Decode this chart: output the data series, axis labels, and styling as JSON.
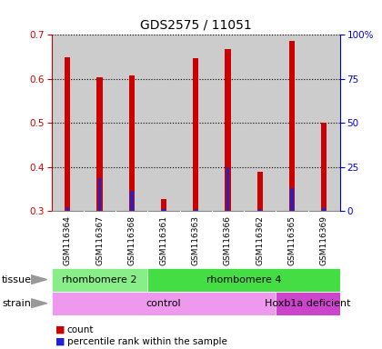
{
  "title": "GDS2575 / 11051",
  "samples": [
    "GSM116364",
    "GSM116367",
    "GSM116368",
    "GSM116361",
    "GSM116363",
    "GSM116366",
    "GSM116362",
    "GSM116365",
    "GSM116369"
  ],
  "red_values": [
    0.649,
    0.603,
    0.609,
    0.328,
    0.648,
    0.667,
    0.389,
    0.686,
    0.5
  ],
  "blue_values": [
    0.308,
    0.374,
    0.347,
    0.305,
    0.305,
    0.4,
    0.305,
    0.352,
    0.307
  ],
  "ylim": [
    0.3,
    0.7
  ],
  "left_yticks": [
    0.3,
    0.4,
    0.5,
    0.6,
    0.7
  ],
  "right_yticks": [
    0,
    25,
    50,
    75,
    100
  ],
  "right_yticklabels": [
    "0",
    "25",
    "50",
    "75",
    "100%"
  ],
  "tissue_groups": [
    {
      "label": "rhombomere 2",
      "start": 0,
      "end": 3,
      "color": "#88ee88"
    },
    {
      "label": "rhombomere 4",
      "start": 3,
      "end": 9,
      "color": "#44dd44"
    }
  ],
  "strain_groups": [
    {
      "label": "control",
      "start": 0,
      "end": 7,
      "color": "#ee99ee"
    },
    {
      "label": "Hoxb1a deficient",
      "start": 7,
      "end": 9,
      "color": "#cc44cc"
    }
  ],
  "bar_color": "#cc0000",
  "blue_color": "#2222cc",
  "left_tick_color": "#cc0000",
  "right_tick_color": "#0000cc",
  "grid_color": "#000000",
  "plot_bg": "#ffffff",
  "sample_bg": "#cccccc",
  "legend_red": "count",
  "legend_blue": "percentile rank within the sample"
}
